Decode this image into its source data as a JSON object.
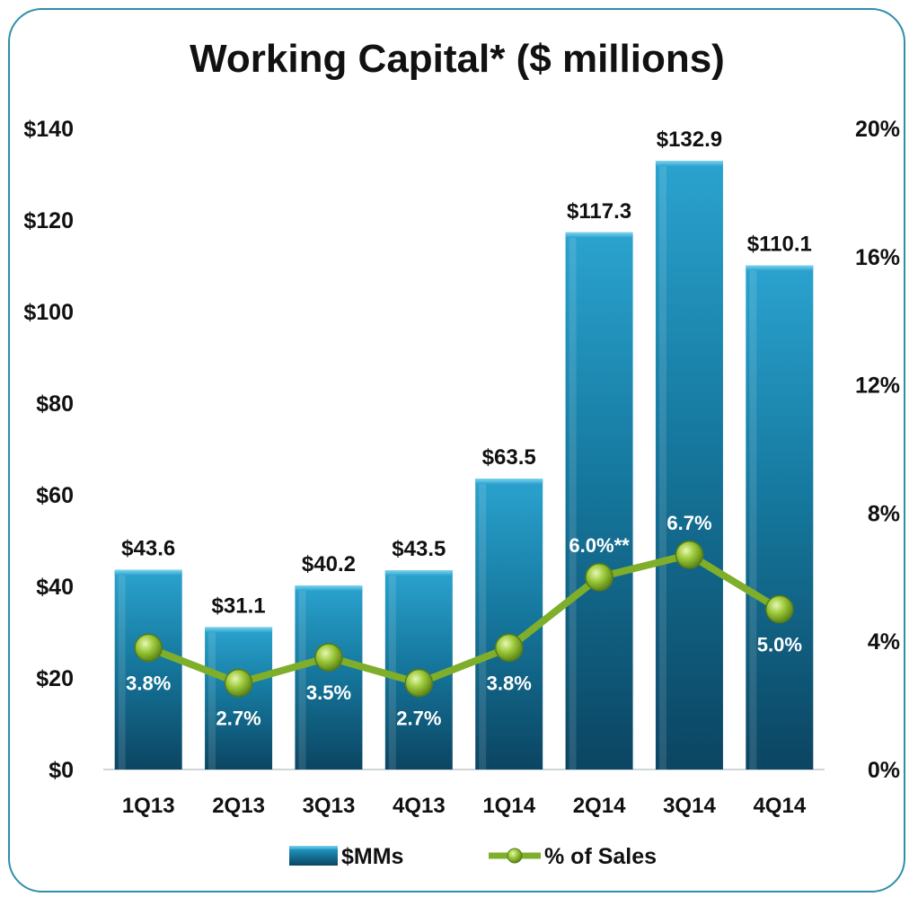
{
  "chart_data": {
    "type": "bar",
    "title": "Working Capital* ($ millions)",
    "categories": [
      "1Q13",
      "2Q13",
      "3Q13",
      "4Q13",
      "1Q14",
      "2Q14",
      "3Q14",
      "4Q14"
    ],
    "series": [
      {
        "name": "$MMs",
        "type": "bar",
        "axis": "left",
        "color": "#1a7aa3",
        "values": [
          43.6,
          31.1,
          40.2,
          43.5,
          63.5,
          117.3,
          132.9,
          110.1
        ],
        "labels": [
          "$43.6",
          "$31.1",
          "$40.2",
          "$43.5",
          "$63.5",
          "$117.3",
          "$132.9",
          "$110.1"
        ]
      },
      {
        "name": "% of Sales",
        "type": "line",
        "axis": "right",
        "color": "#7fae2a",
        "values": [
          3.8,
          2.7,
          3.5,
          2.7,
          3.8,
          6.0,
          6.7,
          5.0
        ],
        "labels": [
          "3.8%",
          "2.7%",
          "3.5%",
          "2.7%",
          "3.8%",
          "6.0%**",
          "6.7%",
          "5.0%"
        ]
      }
    ],
    "y_left": {
      "min": 0,
      "max": 140,
      "ticks": [
        "$0",
        "$20",
        "$40",
        "$60",
        "$80",
        "$100",
        "$120",
        "$140"
      ]
    },
    "y_right": {
      "min": 0,
      "max": 20,
      "ticks": [
        "0%",
        "4%",
        "8%",
        "12%",
        "16%",
        "20%"
      ]
    },
    "grid": false,
    "legend": "bottom"
  }
}
